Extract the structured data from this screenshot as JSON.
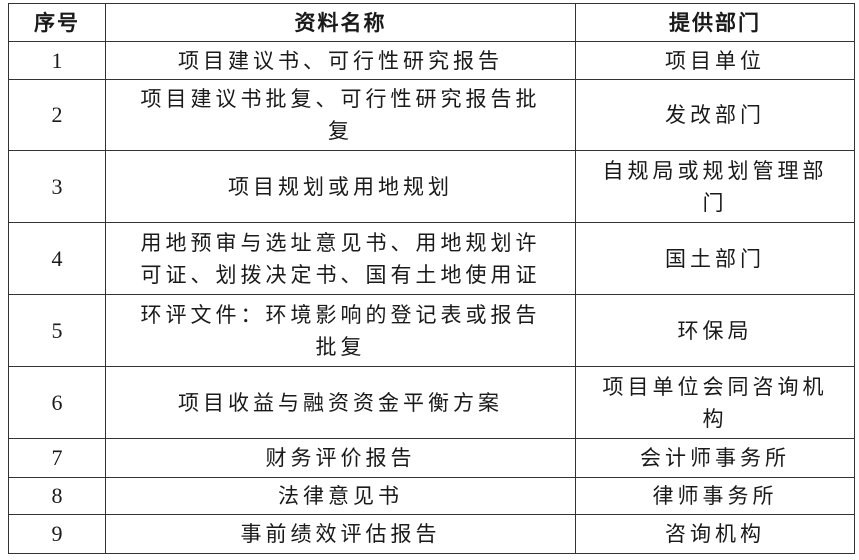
{
  "headers": [
    "序号",
    "资料名称",
    "提供部门"
  ],
  "rows": [
    {
      "no": "1",
      "name": "项目建议书、可行性研究报告",
      "dept": "项目单位"
    },
    {
      "no": "2",
      "name": "项目建议书批复、可行性研究报告批\n复",
      "dept": "发改部门"
    },
    {
      "no": "3",
      "name": "项目规划或用地规划",
      "dept": "自规局或规划管理部\n门"
    },
    {
      "no": "4",
      "name": "用地预审与选址意见书、用地规划许\n可证、划拨决定书、国有土地使用证",
      "dept": "国土部门"
    },
    {
      "no": "5",
      "name": "环评文件：环境影响的登记表或报告\n批复",
      "dept": "环保局"
    },
    {
      "no": "6",
      "name": "项目收益与融资资金平衡方案",
      "dept": "项目单位会同咨询机\n构"
    },
    {
      "no": "7",
      "name": "财务评价报告",
      "dept": "会计师事务所"
    },
    {
      "no": "8",
      "name": "法律意见书",
      "dept": "律师事务所"
    },
    {
      "no": "9",
      "name": "事前绩效评估报告",
      "dept": "咨询机构"
    }
  ]
}
